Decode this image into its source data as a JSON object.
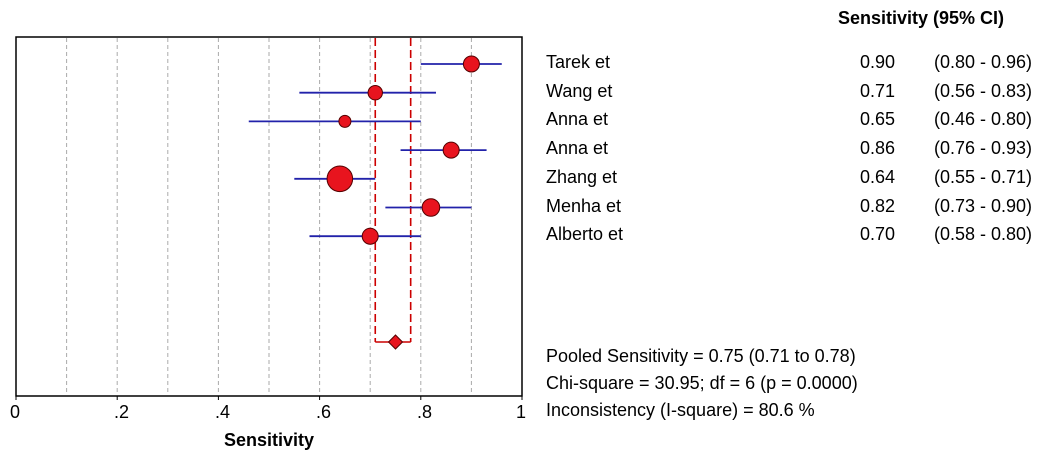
{
  "header": "Sensitivity (95% CI)",
  "chart_data": {
    "type": "forest",
    "xlabel": "Sensitivity",
    "xlim": [
      0,
      1
    ],
    "tick_labels": [
      "0",
      ".2",
      ".4",
      ".6",
      ".8",
      "1"
    ],
    "tick_values": [
      0,
      0.2,
      0.4,
      0.6,
      0.8,
      1
    ],
    "grid": "dashed vertical every 0.1",
    "studies": [
      {
        "name": "Tarek et",
        "estimate": 0.9,
        "lower": 0.8,
        "upper": 0.96,
        "est_label": "0.90",
        "ci_label": "(0.80 - 0.96)",
        "weight": 1.0
      },
      {
        "name": "Wang et",
        "estimate": 0.71,
        "lower": 0.56,
        "upper": 0.83,
        "est_label": "0.71",
        "ci_label": "(0.56 - 0.83)",
        "weight": 0.9
      },
      {
        "name": "Anna et",
        "estimate": 0.65,
        "lower": 0.46,
        "upper": 0.8,
        "est_label": "0.65",
        "ci_label": "(0.46 - 0.80)",
        "weight": 0.75
      },
      {
        "name": "Anna et",
        "estimate": 0.86,
        "lower": 0.76,
        "upper": 0.93,
        "est_label": "0.86",
        "ci_label": "(0.76 - 0.93)",
        "weight": 1.0
      },
      {
        "name": "Zhang et",
        "estimate": 0.64,
        "lower": 0.55,
        "upper": 0.71,
        "est_label": "0.64",
        "ci_label": "(0.55 - 0.71)",
        "weight": 1.6
      },
      {
        "name": "Menha et",
        "estimate": 0.82,
        "lower": 0.73,
        "upper": 0.9,
        "est_label": "0.82",
        "ci_label": "(0.73 - 0.90)",
        "weight": 1.1
      },
      {
        "name": "Alberto et",
        "estimate": 0.7,
        "lower": 0.58,
        "upper": 0.8,
        "est_label": "0.70",
        "ci_label": "(0.58 - 0.80)",
        "weight": 1.0
      }
    ],
    "pooled": {
      "estimate": 0.75,
      "lower": 0.71,
      "upper": 0.78
    },
    "marker_color": "#e8141e",
    "ci_color": "#2222aa",
    "pooled_line_color": "#cc0000"
  },
  "stats": {
    "pooled": "Pooled Sensitivity = 0.75 (0.71 to 0.78)",
    "chisq": "Chi-square = 30.95; df =  6 (p = 0.0000)",
    "isq": "Inconsistency (I-square) = 80.6 %"
  }
}
